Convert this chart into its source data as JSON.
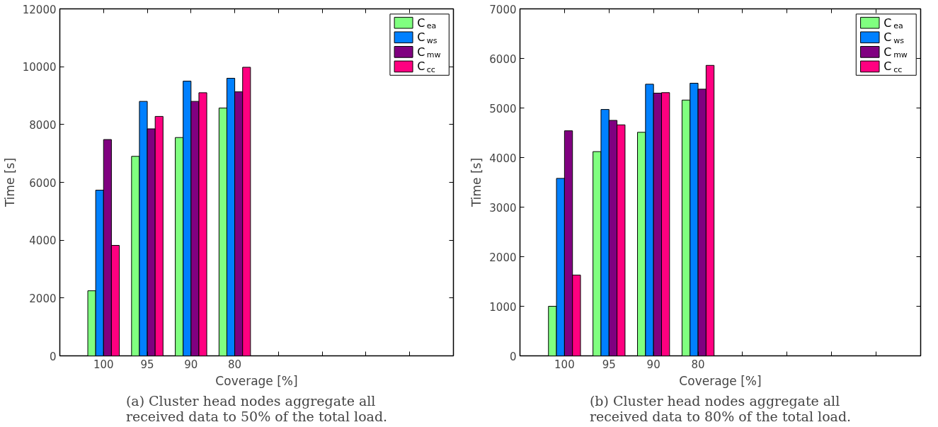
{
  "chart_data": [
    {
      "type": "bar",
      "categories": [
        "100",
        "95",
        "90",
        "80",
        null,
        null,
        null,
        null
      ],
      "xlabel": "Coverage [%]",
      "ylabel": "Time [s]",
      "ylim": [
        0,
        12000
      ],
      "yticks": [
        0,
        2000,
        4000,
        6000,
        8000,
        10000,
        12000
      ],
      "grid": false,
      "legend": "top right",
      "series": [
        {
          "name": "C$_{ea}$",
          "color": "#80ff80",
          "values": [
            2250,
            6900,
            7550,
            8570,
            null,
            null,
            null,
            null
          ]
        },
        {
          "name": "C$_{ws}$",
          "color": "#0080ff",
          "values": [
            5730,
            8800,
            9500,
            9600,
            null,
            null,
            null,
            null
          ]
        },
        {
          "name": "C$_{mw}$",
          "color": "#800080",
          "values": [
            7480,
            7850,
            8800,
            9130,
            null,
            null,
            null,
            null
          ]
        },
        {
          "name": "C$_{cc}$",
          "color": "#ff0080",
          "values": [
            3820,
            8280,
            9100,
            9980,
            null,
            null,
            null,
            null
          ]
        }
      ],
      "annotations": [
        "(a) Cluster head nodes aggregate all received data to 50% of the total load."
      ]
    },
    {
      "type": "bar",
      "categories": [
        "100",
        "95",
        "90",
        "80",
        null,
        null,
        null,
        null
      ],
      "xlabel": "Coverage [%]",
      "ylabel": "Time [s]",
      "ylim": [
        0,
        7000
      ],
      "yticks": [
        0,
        1000,
        2000,
        3000,
        4000,
        5000,
        6000,
        7000
      ],
      "grid": false,
      "legend": "top right",
      "series": [
        {
          "name": "C$_{ea}$",
          "color": "#80ff80",
          "values": [
            1000,
            4120,
            4510,
            5160,
            null,
            null,
            null,
            null
          ]
        },
        {
          "name": "C$_{ws}$",
          "color": "#0080ff",
          "values": [
            3580,
            4970,
            5480,
            5500,
            null,
            null,
            null,
            null
          ]
        },
        {
          "name": "C$_{mw}$",
          "color": "#800080",
          "values": [
            4540,
            4750,
            5300,
            5380,
            null,
            null,
            null,
            null
          ]
        },
        {
          "name": "C$_{cc}$",
          "color": "#ff0080",
          "values": [
            1630,
            4660,
            5310,
            5860,
            null,
            null,
            null,
            null
          ]
        }
      ],
      "annotations": [
        "(b) Cluster head nodes aggregate all received data to 80% of the total load."
      ]
    }
  ]
}
